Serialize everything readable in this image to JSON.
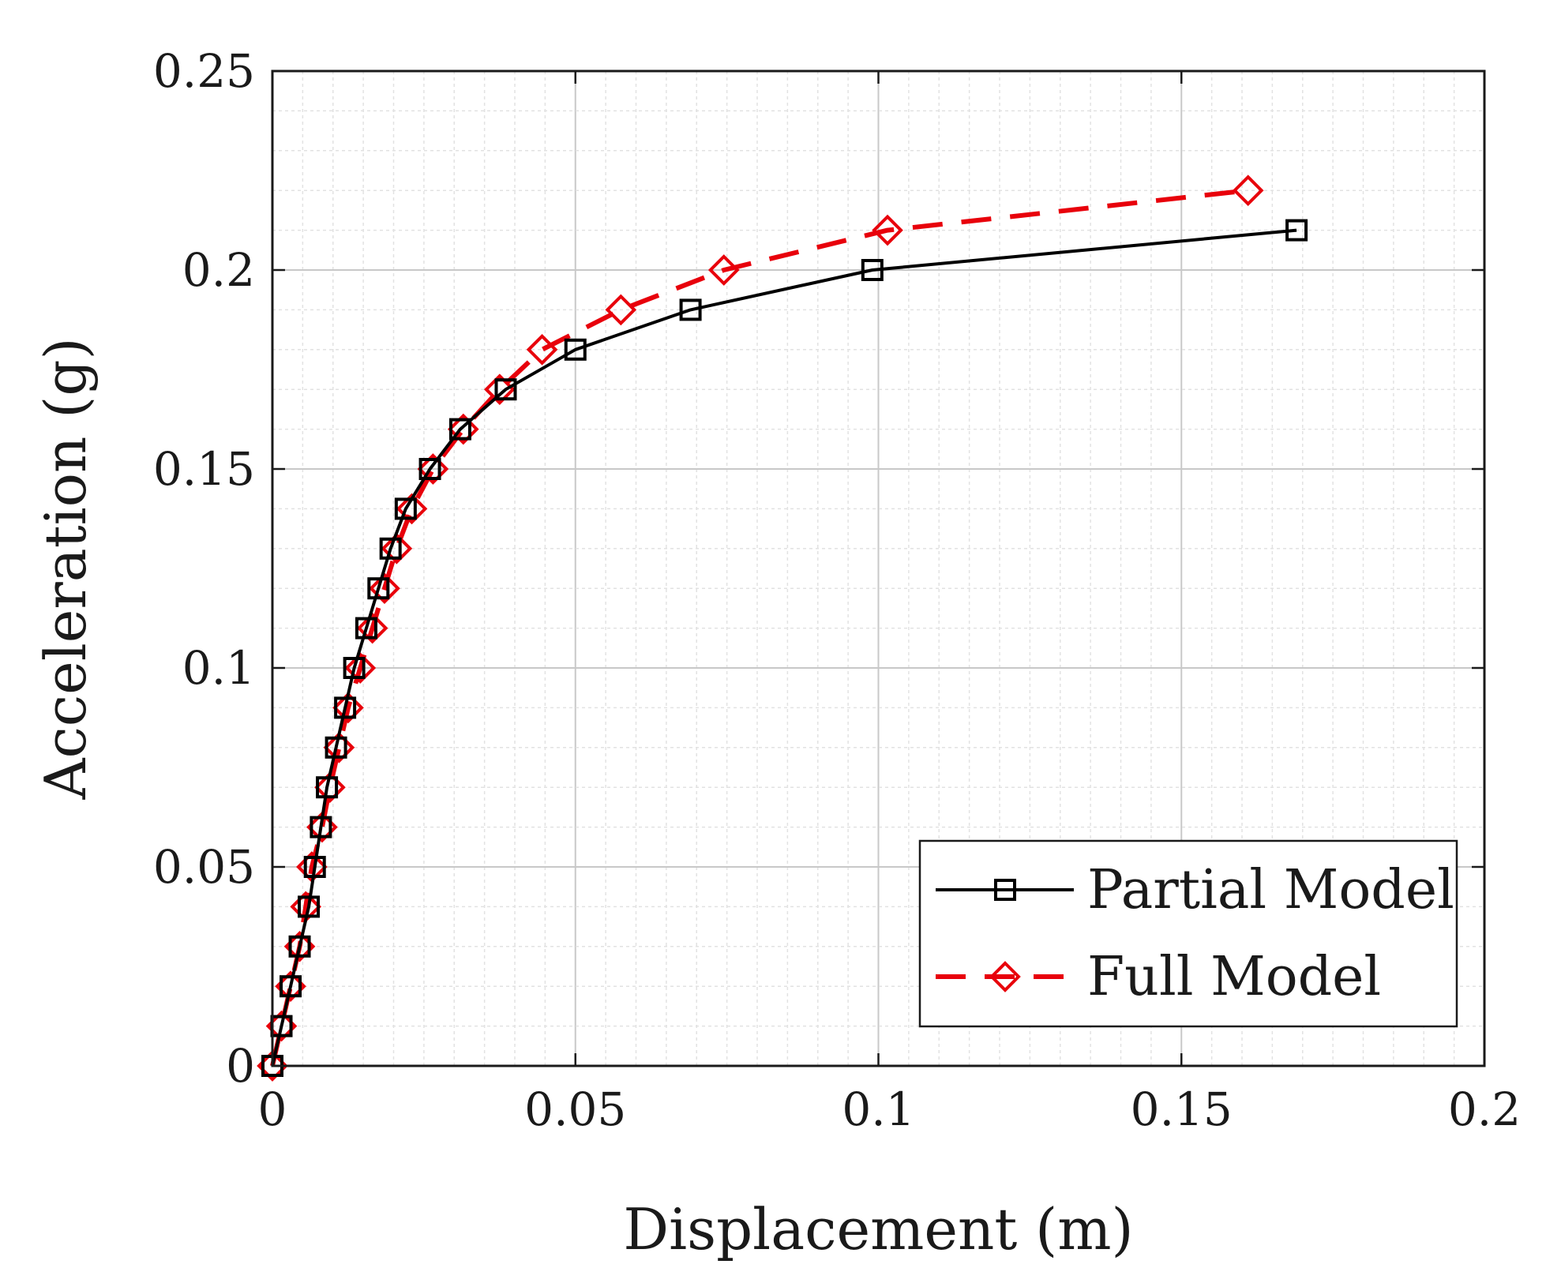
{
  "chart_data": {
    "type": "line",
    "title": "",
    "xlabel": "Displacement (m)",
    "ylabel": "Acceleration (g)",
    "xlim": [
      0,
      0.2
    ],
    "ylim": [
      0,
      0.25
    ],
    "grid": true,
    "minor_grid": true,
    "legend_position": "bottom-right",
    "xticks": [
      0,
      0.05,
      0.1,
      0.15,
      0.2
    ],
    "xtick_labels": [
      "0",
      "0.05",
      "0.1",
      "0.15",
      "0.2"
    ],
    "yticks": [
      0,
      0.05,
      0.1,
      0.15,
      0.2,
      0.25
    ],
    "ytick_labels": [
      "0",
      "0.05",
      "0.1",
      "0.15",
      "0.2",
      "0.25"
    ],
    "series": [
      {
        "name": "Partial Model",
        "color": "#000000",
        "line_style": "solid",
        "marker": "square",
        "x": [
          0,
          0.0015,
          0.003,
          0.0045,
          0.006,
          0.007,
          0.008,
          0.009,
          0.0105,
          0.012,
          0.0135,
          0.0155,
          0.0175,
          0.0195,
          0.022,
          0.026,
          0.031,
          0.0385,
          0.05,
          0.069,
          0.099,
          0.169
        ],
        "y": [
          0,
          0.01,
          0.02,
          0.03,
          0.04,
          0.05,
          0.06,
          0.07,
          0.08,
          0.09,
          0.1,
          0.11,
          0.12,
          0.13,
          0.14,
          0.15,
          0.16,
          0.17,
          0.18,
          0.19,
          0.2,
          0.21
        ]
      },
      {
        "name": "Full Model",
        "color": "#e8000b",
        "line_style": "dashed",
        "marker": "diamond",
        "x": [
          0,
          0.0015,
          0.003,
          0.0045,
          0.0055,
          0.0065,
          0.0082,
          0.0095,
          0.011,
          0.0125,
          0.0145,
          0.0165,
          0.0185,
          0.0205,
          0.023,
          0.0265,
          0.0315,
          0.0375,
          0.0445,
          0.0575,
          0.0745,
          0.1015,
          0.161
        ],
        "y": [
          0,
          0.01,
          0.02,
          0.03,
          0.04,
          0.05,
          0.06,
          0.07,
          0.08,
          0.09,
          0.1,
          0.11,
          0.12,
          0.13,
          0.14,
          0.15,
          0.16,
          0.17,
          0.18,
          0.19,
          0.2,
          0.21,
          0.22
        ]
      }
    ]
  }
}
